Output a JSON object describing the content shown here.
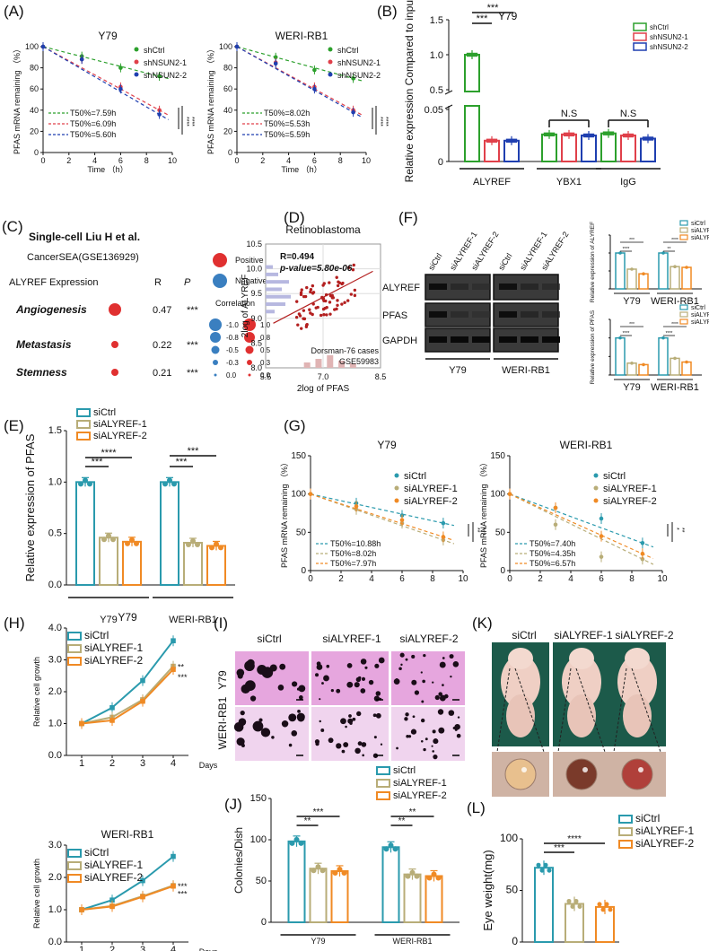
{
  "colors": {
    "green": "#2ca02c",
    "red": "#e0404a",
    "blue": "#1f3fb0",
    "teal": "#2a9aad",
    "khaki": "#b8ad78",
    "orange": "#f08a24",
    "darkred": "#b31f1f",
    "pink": "#e7a5d8"
  },
  "chart_data": [
    {
      "id": "A1",
      "panel": "(A)",
      "type": "line",
      "title": "Y79",
      "xlabel": "Time （h）",
      "ylabel": "PFAS mRNA remaining （%）",
      "xlim": [
        0,
        10
      ],
      "ylim": [
        0,
        100
      ],
      "xticks": [
        "0",
        "2",
        "4",
        "6",
        "8",
        "10"
      ],
      "yticks": [
        "0",
        "20",
        "40",
        "60",
        "80",
        "100"
      ],
      "series": [
        {
          "name": "shCtrl",
          "x": [
            0,
            3,
            6,
            9
          ],
          "y": [
            100,
            91,
            80,
            72
          ]
        },
        {
          "name": "shNSUN2-1",
          "x": [
            0,
            3,
            6,
            9
          ],
          "y": [
            100,
            88,
            62,
            40
          ]
        },
        {
          "name": "shNSUN2-2",
          "x": [
            0,
            3,
            6,
            9
          ],
          "y": [
            100,
            88,
            60,
            36
          ]
        }
      ],
      "annotations": [
        "T50%=7.59h",
        "T50%=6.09h",
        "T50%=5.60h",
        "****",
        "****"
      ]
    },
    {
      "id": "A2",
      "panel": "",
      "type": "line",
      "title": "WERI-RB1",
      "xlabel": "Time （h）",
      "ylabel": "PFAS mRNA remaining （%）",
      "xlim": [
        0,
        10
      ],
      "ylim": [
        0,
        100
      ],
      "xticks": [
        "0",
        "2",
        "4",
        "6",
        "8",
        "10"
      ],
      "yticks": [
        "0",
        "20",
        "40",
        "60",
        "80",
        "100"
      ],
      "series": [
        {
          "name": "shCtrl",
          "x": [
            0,
            3,
            6,
            9
          ],
          "y": [
            100,
            90,
            78,
            70
          ]
        },
        {
          "name": "shNSUN2-1",
          "x": [
            0,
            3,
            6,
            9
          ],
          "y": [
            100,
            85,
            62,
            40
          ]
        },
        {
          "name": "shNSUN2-2",
          "x": [
            0,
            3,
            6,
            9
          ],
          "y": [
            100,
            84,
            60,
            38
          ]
        }
      ],
      "annotations": [
        "T50%=8.02h",
        "T50%=5.53h",
        "T50%=5.59h",
        "****",
        "****"
      ]
    },
    {
      "id": "B",
      "panel": "(B)",
      "type": "bar",
      "title": "Y79",
      "ylabel": "Relative expression Compared to input",
      "categories": [
        "ALYREF",
        "YBX1",
        "IgG"
      ],
      "series": [
        {
          "name": "shCtrl",
          "values": [
            1.0,
            0.026,
            0.027
          ]
        },
        {
          "name": "shNSUN2-1",
          "values": [
            0.02,
            0.026,
            0.025
          ]
        },
        {
          "name": "shNSUN2-2",
          "values": [
            0.02,
            0.025,
            0.022
          ]
        }
      ],
      "yticks_low": [
        "0",
        "0.05"
      ],
      "yticks_high": [
        "0.5",
        "1.0",
        "1.5"
      ],
      "annotations": [
        "***",
        "***",
        "N.S",
        "N.S"
      ]
    },
    {
      "id": "C",
      "panel": "(C)",
      "type": "table",
      "title": "Single-cell Liu H et al.",
      "subtitle": "CancerSEA(GSE136929)",
      "header": [
        "ALYREF Expression",
        "R",
        "P"
      ],
      "rows": [
        {
          "name": "Angiogenesis",
          "R": "0.47",
          "P": "***"
        },
        {
          "name": "Metastasis",
          "R": "0.22",
          "P": "***"
        },
        {
          "name": "Stemness",
          "R": "0.21",
          "P": "***"
        }
      ],
      "legend": {
        "positive": "Positive",
        "negative": "Negative",
        "correlation": "Correlation",
        "neg_values": [
          "-1.0",
          "-0.8",
          "-0.5",
          "-0.3",
          "0.0"
        ],
        "pos_values": [
          "1.0",
          "0.8",
          "0.5",
          "0.3",
          "0.0"
        ]
      }
    },
    {
      "id": "D",
      "panel": "(D)",
      "type": "scatter",
      "title": "Retinoblastoma",
      "xlabel": "2log of PFAS",
      "ylabel": "2log of ALYREF",
      "xlim": [
        5.5,
        8.5
      ],
      "ylim": [
        8.0,
        10.5
      ],
      "xticks": [
        "5.5",
        "7.0",
        "8.5"
      ],
      "yticks": [
        "8.0",
        "8.5",
        "9.0",
        "9.5",
        "10.0",
        "10.5"
      ],
      "stats": [
        "R=0.494",
        "p-value=5.80e-06"
      ],
      "note": [
        "Dorsman-76 cases",
        "GSE59983"
      ],
      "fit": {
        "x": [
          5.7,
          8.3
        ],
        "y": [
          8.9,
          9.95
        ]
      }
    },
    {
      "id": "F",
      "panel": "(F)",
      "type": "blot",
      "lanes": [
        "siCtrl",
        "siALYREF-1",
        "siALYREF-2",
        "siCtrl",
        "siALYREF-1",
        "siALYREF-2"
      ],
      "rows": [
        "ALYREF",
        "PFAS",
        "GAPDH"
      ],
      "groups": [
        "Y79",
        "WERI-RB1"
      ],
      "band_intensity": {
        "ALYREF": [
          0.9,
          0.45,
          0.35,
          0.85,
          0.5,
          0.4
        ],
        "PFAS": [
          0.9,
          0.4,
          0.3,
          0.9,
          0.5,
          0.45
        ],
        "GAPDH": [
          0.95,
          0.95,
          0.95,
          0.95,
          0.95,
          0.95
        ]
      }
    },
    {
      "id": "F1",
      "panel": "",
      "type": "bar",
      "ylabel": "Relative expression of ALYREF",
      "categories": [
        "Y79",
        "WERI-RB1"
      ],
      "series": [
        {
          "name": "siCtrl",
          "values": [
            1.0,
            1.0
          ]
        },
        {
          "name": "siALYREF-1",
          "values": [
            0.55,
            0.62
          ]
        },
        {
          "name": "siALYREF-2",
          "values": [
            0.42,
            0.6
          ]
        }
      ],
      "annotations": [
        "****",
        "***",
        "**",
        "****"
      ]
    },
    {
      "id": "F2",
      "panel": "",
      "type": "bar",
      "ylabel": "Relative expression of PFAS",
      "categories": [
        "Y79",
        "WERI-RB1"
      ],
      "series": [
        {
          "name": "siCtrl",
          "values": [
            1.0,
            1.0
          ]
        },
        {
          "name": "siALYREF-1",
          "values": [
            0.32,
            0.45
          ]
        },
        {
          "name": "siALYREF-2",
          "values": [
            0.28,
            0.35
          ]
        }
      ],
      "annotations": [
        "****",
        "***",
        "****",
        "****"
      ]
    },
    {
      "id": "E",
      "panel": "(E)",
      "type": "bar",
      "ylabel": "Relative expression of PFAS",
      "categories": [
        "Y79",
        "WERI-RB1"
      ],
      "ylim": [
        0,
        1.5
      ],
      "yticks": [
        "0.0",
        "0.5",
        "1.0",
        "1.5"
      ],
      "series": [
        {
          "name": "siCtrl",
          "values": [
            1.0,
            1.0
          ]
        },
        {
          "name": "siALYREF-1",
          "values": [
            0.46,
            0.41
          ]
        },
        {
          "name": "siALYREF-2",
          "values": [
            0.42,
            0.38
          ]
        }
      ],
      "annotations": [
        "***",
        "****",
        "***",
        "***"
      ]
    },
    {
      "id": "G1",
      "panel": "(G)",
      "type": "line",
      "title": "Y79",
      "ylabel": "PFAS mRNA remaining （%）",
      "xlim": [
        0,
        10
      ],
      "ylim": [
        0,
        150
      ],
      "xticks": [
        "0",
        "2",
        "4",
        "6",
        "8",
        "10"
      ],
      "yticks": [
        "0",
        "50",
        "100",
        "150"
      ],
      "series": [
        {
          "name": "siCtrl",
          "x": [
            0,
            3,
            6,
            8.7
          ],
          "y": [
            100,
            88,
            72,
            62
          ]
        },
        {
          "name": "siALYREF-1",
          "x": [
            0,
            3,
            6,
            8.7
          ],
          "y": [
            100,
            80,
            62,
            40
          ]
        },
        {
          "name": "siALYREF-2",
          "x": [
            0,
            3,
            6,
            8.7
          ],
          "y": [
            100,
            84,
            66,
            44
          ]
        }
      ],
      "annotations": [
        "T50%=10.88h",
        "T50%=8.02h",
        "T50%=7.97h",
        "**",
        "***"
      ]
    },
    {
      "id": "G2",
      "panel": "",
      "type": "line",
      "title": "WERI-RB1",
      "ylabel": "PFAS mRNA remaining （%）",
      "xlim": [
        0,
        10
      ],
      "ylim": [
        0,
        150
      ],
      "xticks": [
        "0",
        "2",
        "4",
        "6",
        "8",
        "10"
      ],
      "yticks": [
        "0",
        "50",
        "100",
        "150"
      ],
      "series": [
        {
          "name": "siCtrl",
          "x": [
            0,
            3,
            6,
            8.7
          ],
          "y": [
            100,
            82,
            68,
            36
          ]
        },
        {
          "name": "siALYREF-1",
          "x": [
            0,
            3,
            6,
            8.7
          ],
          "y": [
            100,
            60,
            18,
            15
          ]
        },
        {
          "name": "siALYREF-2",
          "x": [
            0,
            3,
            6,
            8.7
          ],
          "y": [
            100,
            82,
            45,
            22
          ]
        }
      ],
      "annotations": [
        "T50%=7.40h",
        "T50%=4.35h",
        "T50%=6.57h",
        "*",
        "**"
      ]
    },
    {
      "id": "H1",
      "panel": "(H)",
      "type": "line",
      "title": "Y79",
      "ylabel": "Relative cell growth",
      "xlabel": "Days",
      "xlim": [
        0.5,
        4.5
      ],
      "ylim": [
        0.0,
        4.0
      ],
      "xticks": [
        "1",
        "2",
        "3",
        "4"
      ],
      "yticks": [
        "0.0",
        "1.0",
        "2.0",
        "3.0",
        "4.0"
      ],
      "series": [
        {
          "name": "siCtrl",
          "x": [
            1,
            2,
            3,
            4
          ],
          "y": [
            1.0,
            1.5,
            2.35,
            3.6
          ]
        },
        {
          "name": "siALYREF-1",
          "x": [
            1,
            2,
            3,
            4
          ],
          "y": [
            1.0,
            1.2,
            1.75,
            2.8
          ]
        },
        {
          "name": "siALYREF-2",
          "x": [
            1,
            2,
            3,
            4
          ],
          "y": [
            1.0,
            1.1,
            1.7,
            2.7
          ]
        }
      ],
      "annotations": [
        "**",
        "***"
      ]
    },
    {
      "id": "H2",
      "panel": "",
      "type": "line",
      "title": "WERI-RB1",
      "ylabel": "Relative cell growth",
      "xlabel": "Days",
      "xlim": [
        0.5,
        4.5
      ],
      "ylim": [
        0.0,
        3.0
      ],
      "xticks": [
        "1",
        "2",
        "3",
        "4"
      ],
      "yticks": [
        "0.0",
        "1.0",
        "2.0",
        "3.0"
      ],
      "series": [
        {
          "name": "siCtrl",
          "x": [
            1,
            2,
            3,
            4
          ],
          "y": [
            1.0,
            1.3,
            1.9,
            2.65
          ]
        },
        {
          "name": "siALYREF-1",
          "x": [
            1,
            2,
            3,
            4
          ],
          "y": [
            1.0,
            1.12,
            1.42,
            1.75
          ]
        },
        {
          "name": "siALYREF-2",
          "x": [
            1,
            2,
            3,
            4
          ],
          "y": [
            1.0,
            1.1,
            1.4,
            1.73
          ]
        }
      ],
      "annotations": [
        "***",
        "***"
      ]
    },
    {
      "id": "J",
      "panel": "(J)",
      "type": "bar",
      "ylabel": "Colonies/Dish",
      "categories": [
        "Y79",
        "WERI-RB1"
      ],
      "ylim": [
        0,
        150
      ],
      "yticks": [
        "0",
        "50",
        "100",
        "150"
      ],
      "series": [
        {
          "name": "siCtrl",
          "values": [
            98,
            91
          ]
        },
        {
          "name": "siALYREF-1",
          "values": [
            65,
            58
          ]
        },
        {
          "name": "siALYREF-2",
          "values": [
            62,
            56
          ]
        }
      ],
      "annotations": [
        "**",
        "***",
        "**",
        "**"
      ]
    },
    {
      "id": "L",
      "panel": "(L)",
      "type": "bar",
      "ylabel": "Eye weight(mg)",
      "ylim": [
        0,
        100
      ],
      "yticks": [
        "0",
        "50",
        "100"
      ],
      "series": [
        {
          "name": "siCtrl",
          "values": [
            72
          ]
        },
        {
          "name": "siALYREF-1",
          "values": [
            37
          ]
        },
        {
          "name": "siALYREF-2",
          "values": [
            34
          ]
        }
      ],
      "annotations": [
        "***",
        "****"
      ]
    }
  ],
  "panel_i": {
    "letter": "(I)",
    "cols": [
      "siCtrl",
      "siALYREF-1",
      "siALYREF-2"
    ],
    "rows": [
      "Y79",
      "WERI-RB1"
    ]
  },
  "panel_k": {
    "letter": "(K)",
    "cols": [
      "siCtrl",
      "siALYREF-1",
      "siALYREF-2"
    ]
  }
}
